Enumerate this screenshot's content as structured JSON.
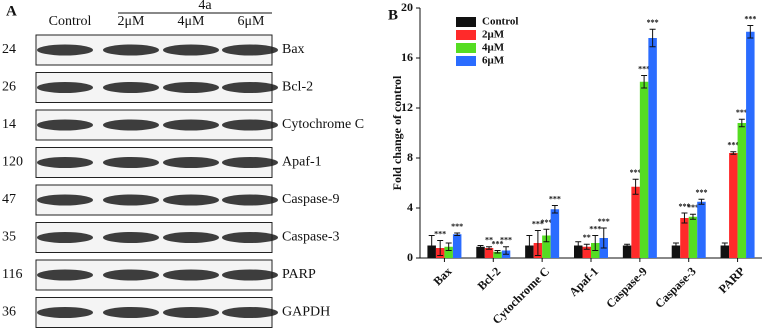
{
  "blot": {
    "panel_label": "A",
    "control_label": "Control",
    "treatment_label": "4a",
    "doses": [
      "2μM",
      "4μM",
      "6μM"
    ],
    "rows": [
      {
        "mw": 24,
        "protein": "Bax"
      },
      {
        "mw": 26,
        "protein": "Bcl-2"
      },
      {
        "mw": 14,
        "protein": "Cytochrome C"
      },
      {
        "mw": 120,
        "protein": "Apaf-1"
      },
      {
        "mw": 47,
        "protein": "Caspase-9"
      },
      {
        "mw": 35,
        "protein": "Caspase-3"
      },
      {
        "mw": 116,
        "protein": "PARP"
      },
      {
        "mw": 36,
        "protein": "GAPDH"
      }
    ]
  },
  "chart_data": {
    "type": "bar",
    "label": "B",
    "ylabel": "Fold change of control",
    "categories": [
      "Bax",
      "Bcl-2",
      "Cytochrome C",
      "Apaf-1",
      "Caspase-9",
      "Caspase-3",
      "PARP"
    ],
    "series": [
      {
        "name": "Control",
        "color": "#111111",
        "values": [
          1.0,
          0.9,
          1.0,
          1.0,
          1.0,
          1.0,
          1.0
        ],
        "errors": [
          0.8,
          0.1,
          0.8,
          0.3,
          0.1,
          0.2,
          0.2
        ],
        "significance": [
          null,
          null,
          null,
          null,
          null,
          null,
          null
        ]
      },
      {
        "name": "2μM",
        "color": "#ff2a2a",
        "values": [
          0.8,
          0.8,
          1.2,
          0.9,
          5.7,
          3.2,
          8.4
        ],
        "errors": [
          0.6,
          0.1,
          1.0,
          0.2,
          0.6,
          0.4,
          0.1
        ],
        "significance": [
          "***",
          "**",
          "***",
          "**",
          "***",
          "***",
          "***"
        ]
      },
      {
        "name": "4μM",
        "color": "#55dd22",
        "values": [
          0.9,
          0.5,
          1.8,
          1.2,
          14.1,
          3.3,
          10.8
        ],
        "errors": [
          0.3,
          0.1,
          0.5,
          0.6,
          0.5,
          0.2,
          0.3
        ],
        "significance": [
          null,
          "***",
          "***",
          "***",
          "***",
          "***",
          "***"
        ]
      },
      {
        "name": "6μM",
        "color": "#2a6cff",
        "values": [
          1.9,
          0.6,
          3.9,
          1.6,
          17.6,
          4.5,
          18.1
        ],
        "errors": [
          0.1,
          0.3,
          0.3,
          0.8,
          0.7,
          0.2,
          0.5
        ],
        "significance": [
          "***",
          "***",
          "***",
          "***",
          "***",
          "***",
          "***"
        ]
      }
    ],
    "ylim": [
      0,
      20
    ],
    "yticks": [
      0,
      4,
      8,
      12,
      16,
      20
    ],
    "legend": "top-left"
  }
}
